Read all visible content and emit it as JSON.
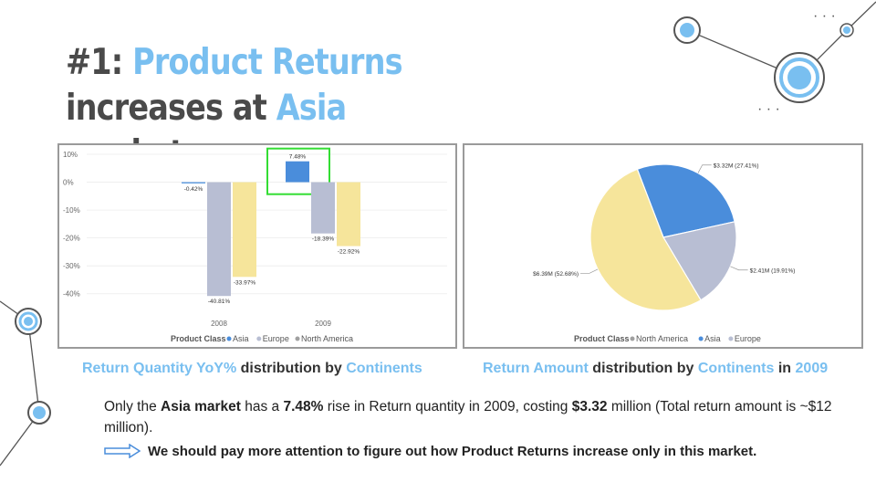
{
  "slide": {
    "title_prefix": "#1:",
    "title_highlight_1": "Product Returns",
    "title_mid": "increases at",
    "title_highlight_2": "Asia",
    "title_suffix": "market"
  },
  "captions": {
    "left": {
      "b1": "Return Quantity YoY%",
      "t1": "distribution by",
      "b2": "Continents"
    },
    "right": {
      "b1": "Return Amount",
      "t1": "distribution by",
      "b2": "Continents",
      "t2": "in",
      "b3": "2009"
    }
  },
  "body": {
    "t1": "Only the",
    "b1": "Asia market",
    "t2": "has a",
    "b2": "7.48%",
    "t3": "rise in Return quantity in 2009, costing",
    "b3": "$3.32",
    "t4": "million (Total return amount is ~$12 million)."
  },
  "action": {
    "text": "We should pay more attention to figure out how Product Returns increase only in this market."
  },
  "colors": {
    "asia": "#4a8ddb",
    "europe": "#b8bed3",
    "north_america": "#f6e59b",
    "highlight": "#79bff0",
    "box": "#33dd33"
  },
  "chart_data": [
    {
      "type": "bar",
      "categories": [
        "2008",
        "2009"
      ],
      "series": [
        {
          "name": "Asia",
          "values": [
            -0.42,
            7.48
          ],
          "labels": [
            "-0.42%",
            "7.48%"
          ]
        },
        {
          "name": "Europe",
          "values": [
            -40.81,
            -18.39
          ],
          "labels": [
            "-40.81%",
            "-18.39%"
          ]
        },
        {
          "name": "North America",
          "values": [
            -33.97,
            -22.92
          ],
          "labels": [
            "-33.97%",
            "-22.92%"
          ]
        }
      ],
      "yticks": [
        "10%",
        "0%",
        "-10%",
        "-20%",
        "-30%",
        "-40%"
      ],
      "ylim": [
        -45,
        10
      ],
      "legend_title": "Product Class",
      "legend_position": "bottom",
      "highlight": {
        "category": "2009",
        "series": "Asia"
      }
    },
    {
      "type": "pie",
      "slices": [
        {
          "name": "Asia",
          "value": 3.32,
          "label": "$3.32M (27.41%)"
        },
        {
          "name": "Europe",
          "value": 2.41,
          "label": "$2.41M (19.91%)"
        },
        {
          "name": "North America",
          "value": 6.39,
          "label": "$6.39M (52.68%)"
        }
      ],
      "legend_title": "Product Class",
      "legend_order": [
        "North America",
        "Asia",
        "Europe"
      ],
      "legend_position": "bottom"
    }
  ]
}
